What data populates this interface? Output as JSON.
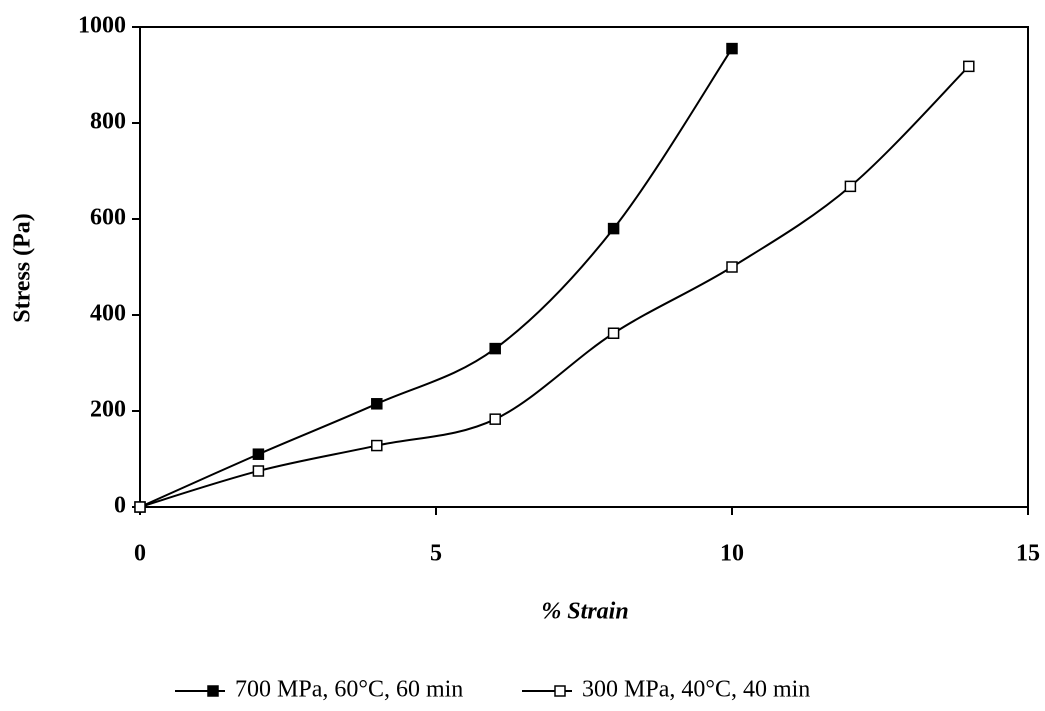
{
  "chart_data": {
    "type": "line",
    "xlabel": "% Strain",
    "ylabel": "Stress (Pa)",
    "xlim": [
      0,
      15
    ],
    "xticks": [
      0,
      5,
      10,
      15
    ],
    "ylim": [
      0,
      1000
    ],
    "yticks": [
      0,
      200,
      400,
      600,
      800,
      1000
    ],
    "smooth": true,
    "legend": "bottom",
    "series": [
      {
        "name": "700 MPa, 60°C, 60 min",
        "color": "#000000",
        "marker": "square-filled",
        "x": [
          0,
          2,
          4,
          6,
          8,
          10
        ],
        "values": [
          0,
          110,
          215,
          330,
          580,
          955
        ]
      },
      {
        "name": "300 MPa, 40°C, 40 min",
        "color": "#000000",
        "marker": "square-open",
        "x": [
          0,
          2,
          4,
          6,
          8,
          10,
          12,
          14
        ],
        "values": [
          0,
          75,
          128,
          183,
          362,
          500,
          668,
          918
        ]
      }
    ]
  }
}
